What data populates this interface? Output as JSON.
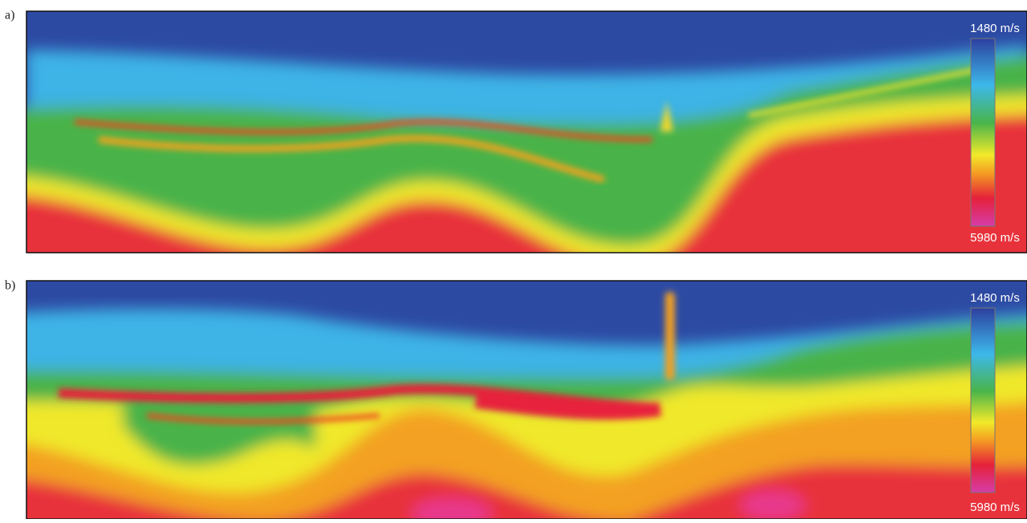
{
  "panels": [
    {
      "label": "a)",
      "colorbar": {
        "top": "1480 m/s",
        "bottom": "5980 m/s"
      }
    },
    {
      "label": "b)",
      "colorbar": {
        "top": "1480 m/s",
        "bottom": "5980 m/s"
      }
    }
  ]
}
